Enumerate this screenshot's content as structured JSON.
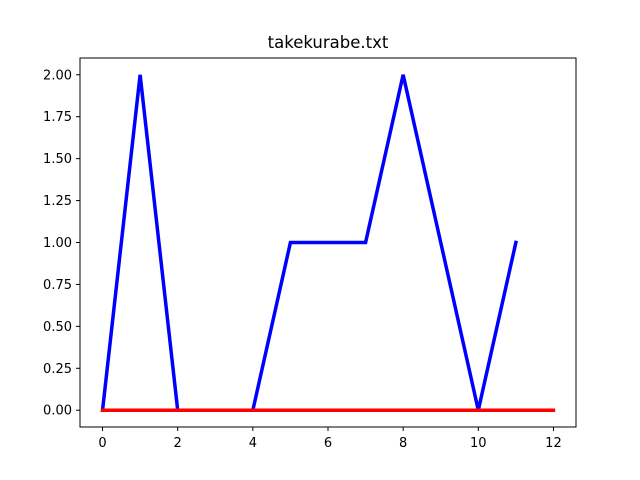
{
  "chart_data": {
    "type": "line",
    "title": "takekurabe.txt",
    "xlabel": "",
    "ylabel": "",
    "xlim": [
      -0.6,
      12.6
    ],
    "ylim": [
      -0.1,
      2.1
    ],
    "x_ticks": [
      "0",
      "2",
      "4",
      "6",
      "8",
      "10",
      "12"
    ],
    "x_tick_values": [
      0,
      2,
      4,
      6,
      8,
      10,
      12
    ],
    "y_ticks": [
      "0.00",
      "0.25",
      "0.50",
      "0.75",
      "1.00",
      "1.25",
      "1.50",
      "1.75",
      "2.00"
    ],
    "y_tick_values": [
      0,
      0.25,
      0.5,
      0.75,
      1.0,
      1.25,
      1.5,
      1.75,
      2.0
    ],
    "grid": false,
    "legend": "none",
    "series": [
      {
        "color": "#0000ff",
        "x": [
          0,
          1,
          2,
          3,
          4,
          5,
          6,
          7,
          8,
          9,
          10,
          11
        ],
        "y": [
          0,
          2,
          0,
          0,
          0,
          1,
          1,
          1,
          2,
          1,
          0,
          1
        ]
      },
      {
        "color": "#ff0000",
        "x": [
          0,
          1,
          2,
          3,
          4,
          5,
          6,
          7,
          8,
          9,
          10,
          11,
          12
        ],
        "y": [
          0,
          0,
          0,
          0,
          0,
          0,
          0,
          0,
          0,
          0,
          0,
          0,
          0
        ]
      }
    ]
  }
}
